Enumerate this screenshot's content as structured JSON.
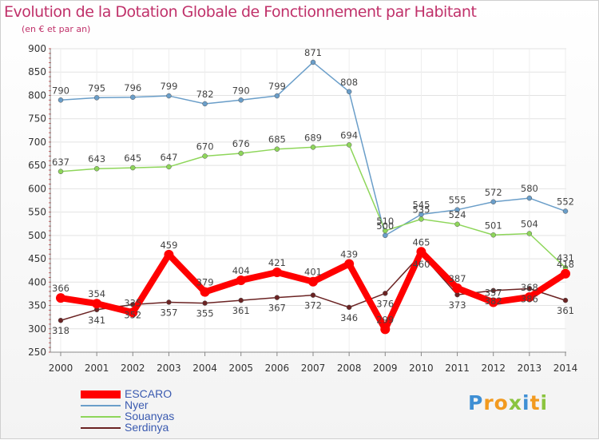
{
  "chart_data": {
    "type": "line",
    "title": "Evolution de la Dotation Globale de Fonctionnement par Habitant",
    "subtitle": "(en € et par an)",
    "xlabel": "",
    "ylabel": "",
    "ylim": [
      250,
      900
    ],
    "yticks": [
      250,
      300,
      350,
      400,
      450,
      500,
      550,
      600,
      650,
      700,
      750,
      800,
      850,
      900
    ],
    "categories": [
      "2000",
      "2001",
      "2002",
      "2003",
      "2004",
      "2005",
      "2006",
      "2007",
      "2008",
      "2009",
      "2010",
      "2011",
      "2012",
      "2013",
      "2014"
    ],
    "series": [
      {
        "name": "ESCARO",
        "color": "#ff0000",
        "values": [
          366,
          354,
          335,
          459,
          379,
          404,
          421,
          401,
          439,
          299,
          465,
          387,
          357,
          368,
          418
        ]
      },
      {
        "name": "Nyer",
        "color": "#6a9ec9",
        "values": [
          790,
          795,
          796,
          799,
          782,
          790,
          799,
          871,
          808,
          500,
          545,
          555,
          572,
          580,
          552
        ]
      },
      {
        "name": "Souanyas",
        "color": "#8ed65a",
        "values": [
          637,
          643,
          645,
          647,
          670,
          676,
          685,
          689,
          694,
          510,
          535,
          524,
          501,
          504,
          431
        ]
      },
      {
        "name": "Serdinya",
        "color": "#6b2323",
        "values": [
          318,
          341,
          352,
          357,
          355,
          361,
          367,
          372,
          346,
          376,
          460,
          373,
          382,
          386,
          361
        ]
      }
    ],
    "legend_position": "bottom-left"
  },
  "logo": {
    "letters": [
      "P",
      "r",
      "o",
      "x",
      "i",
      "t",
      "i"
    ],
    "colors": [
      "#3f8fd4",
      "#f29a1f",
      "#f29a1f",
      "#8bc43f",
      "#3f8fd4",
      "#f29a1f",
      "#8bc43f"
    ]
  }
}
